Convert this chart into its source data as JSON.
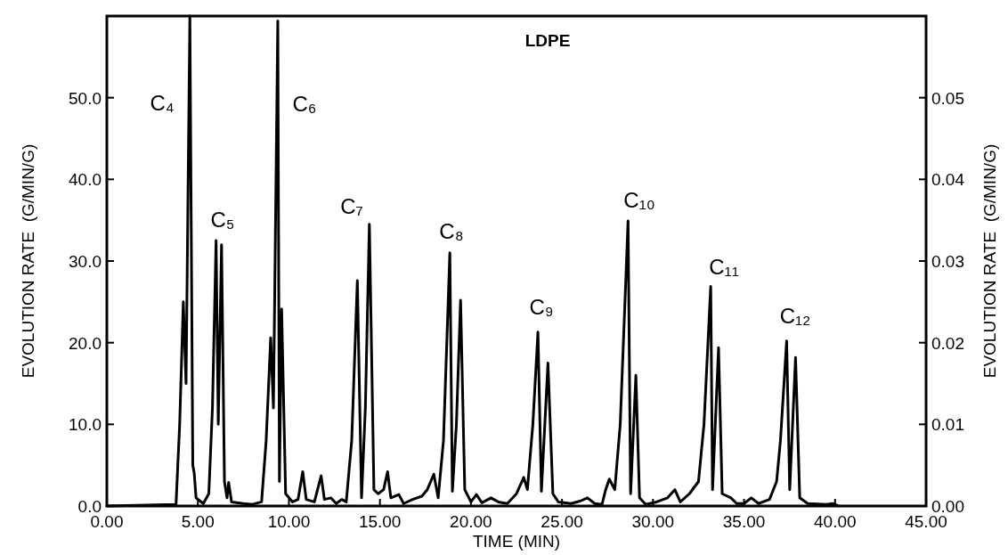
{
  "chart_data": {
    "type": "line",
    "title": "LDPE",
    "xlabel": "TIME (MIN)",
    "ylabel": "EVOLUTION RATE  (G/MIN/G)",
    "y2label": "EVOLUTION RATE  (G/MIN/G)",
    "xlim": [
      0,
      45
    ],
    "xticks": [
      {
        "value": 0,
        "label": "0.00"
      },
      {
        "value": 5,
        "label": "5.00"
      },
      {
        "value": 10,
        "label": "10.00"
      },
      {
        "value": 15,
        "label": "15.00"
      },
      {
        "value": 20,
        "label": "20.00"
      },
      {
        "value": 25,
        "label": "25.00"
      },
      {
        "value": 30,
        "label": "30.00"
      },
      {
        "value": 35,
        "label": "35.00"
      },
      {
        "value": 40,
        "label": "40.00"
      },
      {
        "value": 45,
        "label": "45.00"
      }
    ],
    "ylim": [
      0,
      60
    ],
    "yticks": [
      {
        "value": 0,
        "label": "0.0"
      },
      {
        "value": 10,
        "label": "10.0"
      },
      {
        "value": 20,
        "label": "20.0"
      },
      {
        "value": 30,
        "label": "30.0"
      },
      {
        "value": 40,
        "label": "40.0"
      },
      {
        "value": 50,
        "label": "50.0"
      }
    ],
    "y2lim": [
      0,
      0.06
    ],
    "y2ticks": [
      {
        "value": 0,
        "label": "0.00"
      },
      {
        "value": 0.01,
        "label": "0.01"
      },
      {
        "value": 0.02,
        "label": "0.02"
      },
      {
        "value": 0.03,
        "label": "0.03"
      },
      {
        "value": 0.04,
        "label": "0.04"
      },
      {
        "value": 0.05,
        "label": "0.05"
      }
    ],
    "series": [
      {
        "color": "#000000",
        "x": [
          0,
          3.8,
          4.0,
          4.2,
          4.35,
          4.56,
          4.72,
          4.8,
          4.9,
          5.3,
          5.6,
          5.8,
          6.0,
          6.12,
          6.3,
          6.46,
          6.6,
          6.69,
          6.85,
          7.5,
          8.0,
          8.5,
          8.75,
          9.0,
          9.15,
          9.39,
          9.48,
          9.6,
          9.82,
          10.2,
          10.5,
          10.76,
          10.95,
          11.4,
          11.77,
          11.95,
          12.3,
          12.6,
          12.9,
          13.15,
          13.45,
          13.76,
          13.99,
          14.2,
          14.42,
          14.67,
          14.9,
          15.2,
          15.42,
          15.6,
          16.04,
          16.3,
          16.8,
          17.3,
          17.6,
          17.96,
          18.2,
          18.49,
          18.84,
          18.98,
          19.2,
          19.43,
          19.66,
          20.0,
          20.3,
          20.6,
          21.1,
          21.5,
          22.0,
          22.5,
          22.9,
          23.1,
          23.4,
          23.68,
          23.87,
          24.23,
          24.5,
          24.8,
          25.5,
          26.0,
          26.4,
          26.8,
          27.2,
          27.4,
          27.6,
          27.9,
          28.2,
          28.63,
          28.77,
          29.06,
          29.26,
          29.6,
          30.2,
          30.8,
          31.2,
          31.5,
          32.0,
          32.5,
          32.8,
          33.17,
          33.27,
          33.6,
          33.8,
          34.28,
          34.6,
          35.0,
          35.4,
          35.8,
          36.4,
          36.79,
          37.0,
          37.34,
          37.51,
          37.83,
          38.06,
          38.5,
          39.5,
          39.9,
          40.2
        ],
        "values": [
          0,
          0.2,
          10,
          25,
          15,
          60,
          5,
          4,
          1,
          0.3,
          1.5,
          12,
          32.5,
          10,
          32,
          3,
          1,
          2.9,
          0.5,
          0.3,
          0.2,
          0.5,
          8,
          20.6,
          12,
          59.4,
          3,
          24.1,
          1.5,
          0.5,
          0.8,
          4.2,
          0.8,
          0.5,
          3.7,
          0.8,
          1,
          0.3,
          0.8,
          0.5,
          8,
          27.6,
          1,
          12,
          34.5,
          2,
          1.5,
          2,
          4.2,
          1,
          1.4,
          0.3,
          0.8,
          1.2,
          2,
          3.9,
          1,
          8,
          31,
          1.8,
          10,
          25.2,
          2,
          0.5,
          1.4,
          0.4,
          1,
          0.5,
          0.3,
          1.5,
          3.5,
          2,
          10,
          21.3,
          1.8,
          17.5,
          1.5,
          0.5,
          0.3,
          0.6,
          1,
          0.3,
          0.2,
          2,
          3.3,
          2,
          10,
          34.9,
          1.5,
          16,
          1,
          0.2,
          0.5,
          1,
          2,
          0.5,
          1.5,
          3,
          10,
          26.9,
          2,
          19.4,
          1.5,
          1,
          0.3,
          0.3,
          1,
          0.3,
          0.8,
          3,
          8,
          20.2,
          2,
          18.2,
          1,
          0.3,
          0.2,
          0.3,
          0
        ]
      }
    ],
    "annotations": [
      "C₄",
      "C₅",
      "C₆",
      "C₇",
      "C₈",
      "C₉",
      "C₁₀",
      "C₁₁",
      "C₁₂"
    ],
    "grid": false,
    "marker": "none",
    "line_style": "solid"
  }
}
